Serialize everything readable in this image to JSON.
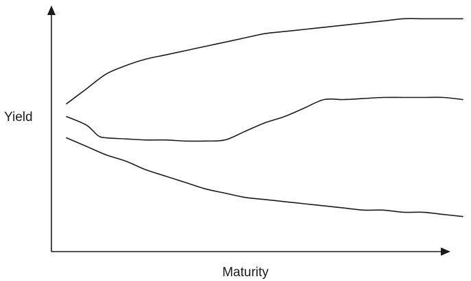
{
  "chart_data": {
    "type": "line",
    "title": "",
    "xlabel": "Maturity",
    "ylabel": "Yield",
    "x_ticks": false,
    "y_ticks": false,
    "grid": false,
    "legend": "none",
    "xlim": [
      0,
      100
    ],
    "ylim": [
      0,
      100
    ],
    "line_color": "#1a1a1a",
    "series": [
      {
        "x": [
          0,
          5,
          10,
          15,
          20,
          25,
          30,
          35,
          40,
          45,
          50,
          55,
          60,
          65,
          70,
          75,
          80,
          85,
          90,
          95,
          100
        ],
        "values": [
          56,
          63,
          70,
          74,
          77,
          79,
          81,
          83,
          85,
          87,
          89,
          90,
          91,
          92,
          93,
          94,
          95,
          96,
          96,
          96,
          96
        ]
      },
      {
        "x": [
          0,
          5,
          8,
          10,
          15,
          20,
          25,
          30,
          35,
          40,
          45,
          50,
          55,
          60,
          65,
          70,
          75,
          80,
          85,
          90,
          95,
          100
        ],
        "values": [
          50,
          46,
          41,
          40,
          39.5,
          39,
          39,
          38.5,
          38.5,
          39,
          43,
          47,
          50,
          54,
          58,
          58,
          58.5,
          59,
          59,
          59,
          59,
          58
        ]
      },
      {
        "x": [
          0,
          5,
          10,
          15,
          20,
          25,
          30,
          35,
          40,
          45,
          50,
          55,
          60,
          65,
          70,
          75,
          80,
          85,
          90,
          95,
          100
        ],
        "values": [
          40,
          36,
          32,
          29,
          25,
          22,
          19,
          16,
          14,
          12,
          11,
          10,
          9,
          8,
          7,
          6,
          6,
          5,
          5,
          4,
          3
        ]
      }
    ]
  }
}
